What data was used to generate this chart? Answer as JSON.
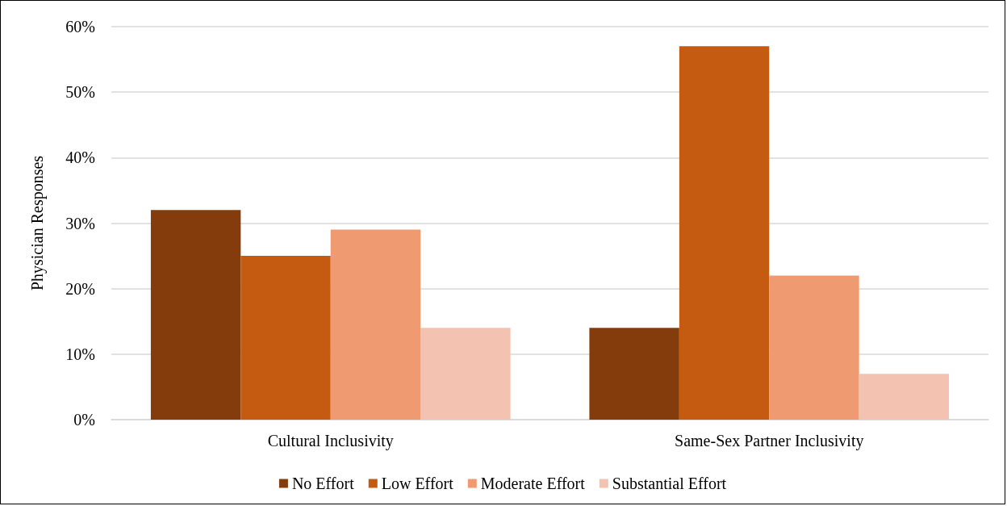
{
  "chart_data": {
    "type": "bar",
    "ylabel": "Physician Responses",
    "categories": [
      "Cultural Inclusivity",
      "Same-Sex Partner Inclusivity"
    ],
    "series": [
      {
        "name": "No Effort",
        "color": "#843c0c",
        "values": [
          32,
          14
        ]
      },
      {
        "name": "Low Effort",
        "color": "#c55a11",
        "values": [
          25,
          57
        ]
      },
      {
        "name": "Moderate Effort",
        "color": "#f09a72",
        "values": [
          29,
          22
        ]
      },
      {
        "name": "Substantial Effort",
        "color": "#f4c2b0",
        "values": [
          14,
          7
        ]
      }
    ],
    "ylim": [
      0,
      60
    ],
    "yticks": [
      {
        "value": 0,
        "label": "0%"
      },
      {
        "value": 10,
        "label": "10%"
      },
      {
        "value": 20,
        "label": "20%"
      },
      {
        "value": 30,
        "label": "30%"
      },
      {
        "value": 40,
        "label": "40%"
      },
      {
        "value": 50,
        "label": "50%"
      },
      {
        "value": 60,
        "label": "60%"
      }
    ],
    "grid": "y",
    "legend": "bottom"
  }
}
